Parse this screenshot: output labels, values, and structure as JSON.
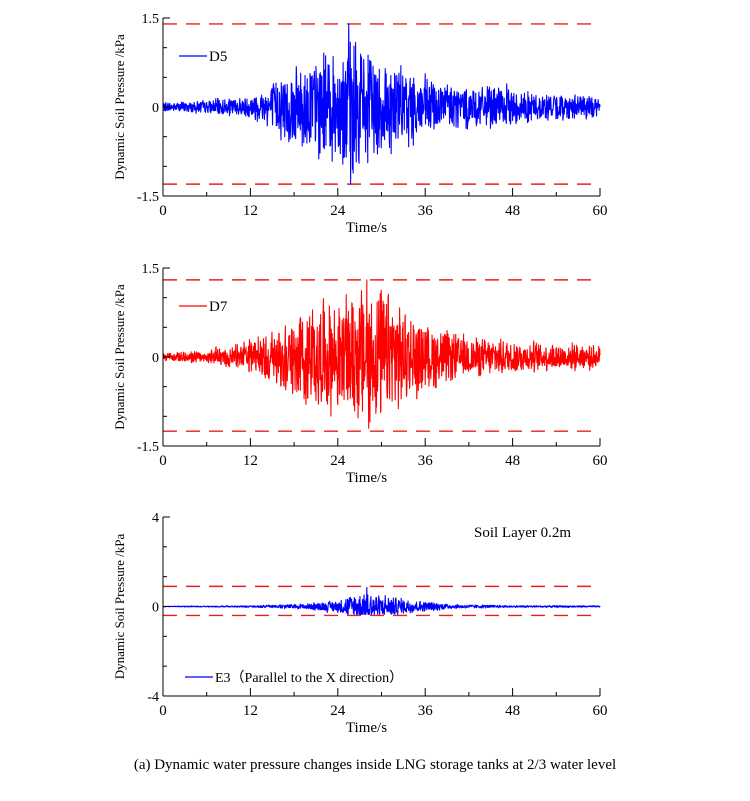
{
  "chart_data": [
    {
      "type": "line",
      "xlabel": "Time/s",
      "ylabel": "Dynamic Soil Pressure /kPa",
      "xlim": [
        0,
        60
      ],
      "ylim": [
        -1.5,
        1.5
      ],
      "xticks": [
        "0",
        "12",
        "24",
        "36",
        "48",
        "60"
      ],
      "yticks": [
        "-1.5",
        "0",
        "1.5"
      ],
      "series": [
        {
          "name": "D5",
          "color": "#0000ff"
        }
      ],
      "reference_lines": {
        "values": [
          1.4,
          -1.3
        ],
        "color": "#e62020",
        "style": "dashed"
      },
      "envelope": {
        "times": [
          0,
          6,
          12,
          16,
          20,
          24,
          25.5,
          28,
          32,
          36,
          42,
          48,
          52,
          60
        ],
        "amplitudes": [
          0.08,
          0.12,
          0.2,
          0.55,
          0.9,
          1.05,
          1.3,
          1.05,
          0.8,
          0.55,
          0.4,
          0.35,
          0.25,
          0.2
        ]
      },
      "peak_max": 1.4,
      "peak_min": -1.3
    },
    {
      "type": "line",
      "xlabel": "Time/s",
      "ylabel": "Dynamic Soil Pressure /kPa",
      "xlim": [
        0,
        60
      ],
      "ylim": [
        -1.5,
        1.5
      ],
      "xticks": [
        "0",
        "12",
        "24",
        "36",
        "48",
        "60"
      ],
      "yticks": [
        "-1.5",
        "0",
        "1.5"
      ],
      "series": [
        {
          "name": "D7",
          "color": "#ff0000"
        }
      ],
      "reference_lines": {
        "values": [
          1.3,
          -1.25
        ],
        "color": "#e62020",
        "style": "dashed"
      },
      "envelope": {
        "times": [
          0,
          6,
          12,
          16,
          20,
          24,
          28,
          32,
          36,
          42,
          48,
          52,
          60
        ],
        "amplitudes": [
          0.08,
          0.12,
          0.3,
          0.6,
          0.9,
          1.0,
          1.3,
          1.0,
          0.6,
          0.35,
          0.3,
          0.25,
          0.2
        ]
      },
      "peak_max": 1.3,
      "peak_min": -1.2
    },
    {
      "type": "line",
      "xlabel": "Time/s",
      "ylabel": "Dynamic Soil Pressure /kPa",
      "xlim": [
        0,
        60
      ],
      "ylim": [
        -4,
        4
      ],
      "xticks": [
        "0",
        "12",
        "24",
        "36",
        "48",
        "60"
      ],
      "yticks": [
        "-4",
        "0",
        "4"
      ],
      "series": [
        {
          "name": "E3（Parallel to the X direction）",
          "color": "#0000ff"
        }
      ],
      "reference_lines": {
        "values": [
          0.9,
          -0.4
        ],
        "color": "#e62020",
        "style": "dashed"
      },
      "annotation": "Soil Layer 0.2m",
      "envelope": {
        "times": [
          0,
          12,
          16,
          20,
          24,
          26,
          28,
          32,
          36,
          40,
          48,
          60
        ],
        "amplitudes": [
          0.02,
          0.04,
          0.08,
          0.15,
          0.3,
          0.55,
          0.75,
          0.45,
          0.25,
          0.1,
          0.05,
          0.04
        ]
      },
      "peak_max": 0.85,
      "peak_min": -0.35
    }
  ],
  "caption": "(a) Dynamic water pressure changes inside LNG storage tanks at 2/3 water level"
}
